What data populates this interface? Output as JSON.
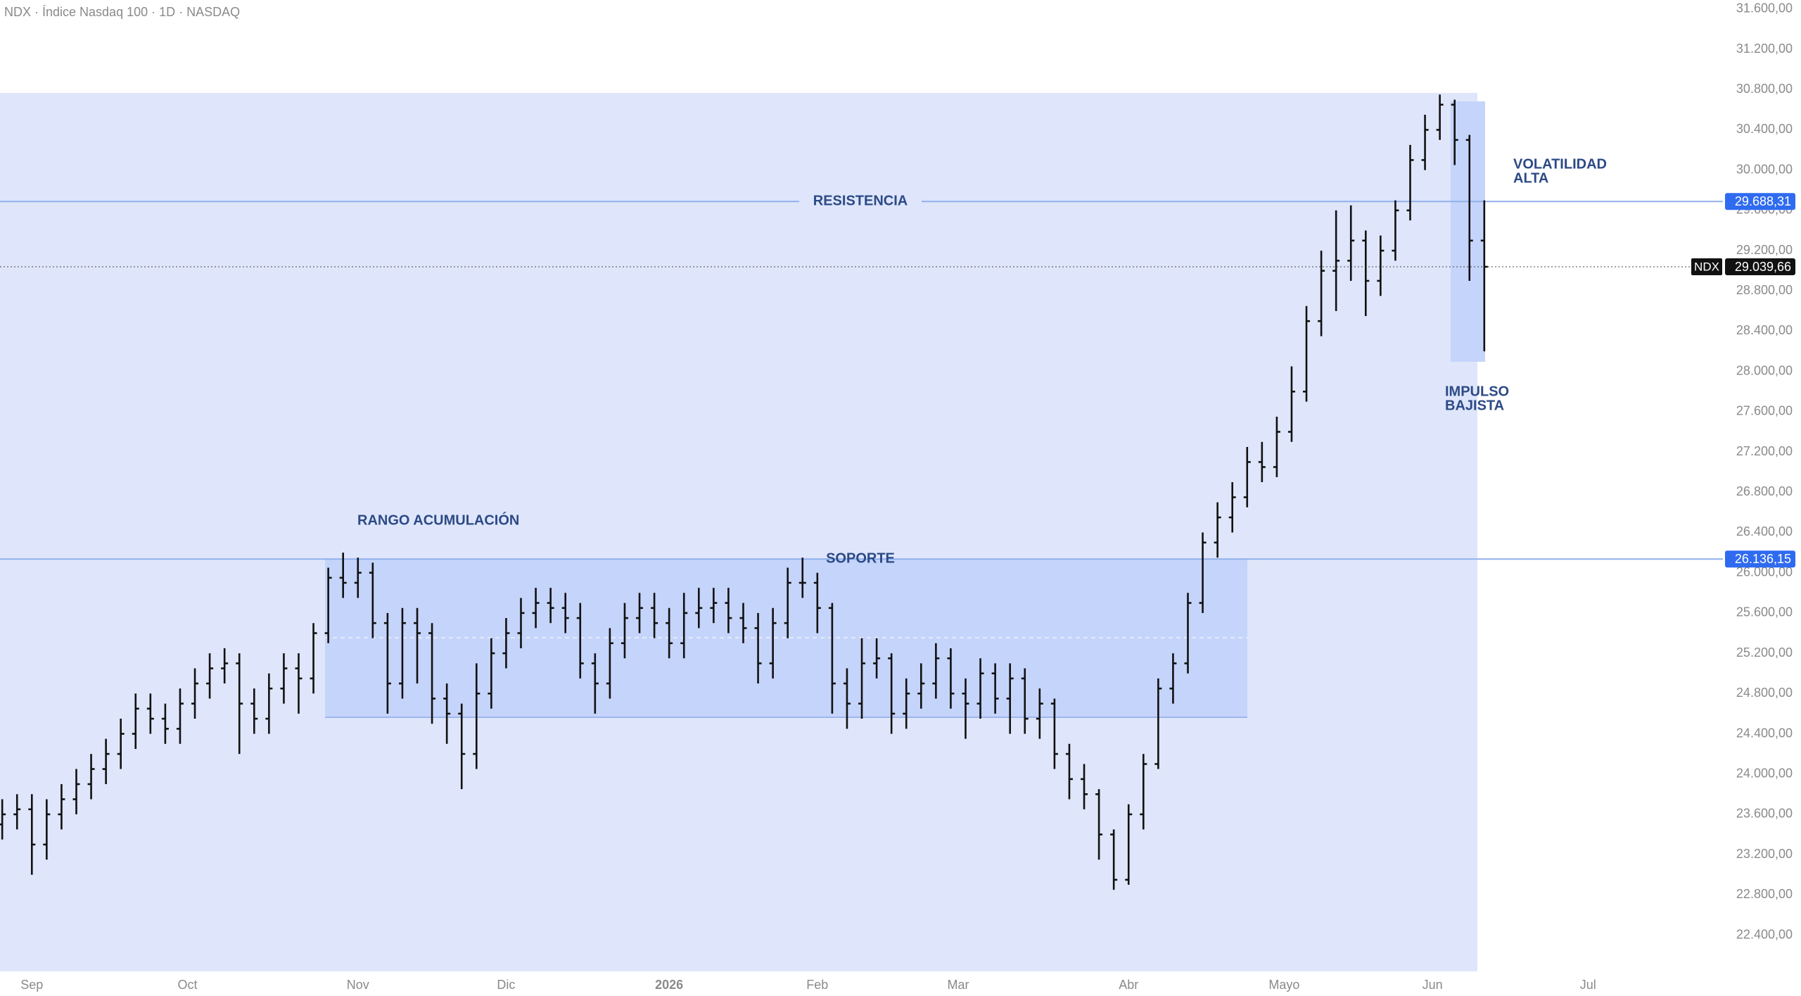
{
  "chart_data": {
    "type": "ohlc",
    "title": "NDX · Índice Nasdaq 100 · 1D · NASDAQ",
    "color": "#111111",
    "open": [
      23500,
      23600,
      23650,
      23300,
      23600,
      23750,
      23900,
      24050,
      24200,
      24400,
      24650,
      24550,
      24450,
      24700,
      24900,
      25050,
      25100,
      24700,
      24550,
      24850,
      25050,
      24950,
      25400,
      25950,
      25900,
      26000,
      25500,
      24900,
      25500,
      25400,
      24750,
      24600,
      24200,
      24800,
      25200,
      25400,
      25600,
      25700,
      25650,
      25550,
      25100,
      24900,
      25300,
      25550,
      25650,
      25500,
      25300,
      25600,
      25650,
      25700,
      25550,
      25450,
      25100,
      25500,
      25900,
      25900,
      25650,
      24900,
      24700,
      25100,
      25150,
      24600,
      24800,
      24900,
      25150,
      24800,
      24700,
      25000,
      24750,
      24950,
      24550,
      24700,
      24200,
      23950,
      23800,
      23400,
      22950,
      23600,
      24100,
      24850,
      25100,
      25700,
      26300,
      26550,
      26750,
      27100,
      27050,
      27400,
      27800,
      28500,
      29000,
      29100,
      29300,
      28900,
      29200,
      29600,
      30100,
      30400,
      30650,
      30300,
      29300
    ],
    "high": [
      23750,
      23800,
      23800,
      23750,
      23900,
      24050,
      24200,
      24350,
      24550,
      24800,
      24800,
      24700,
      24850,
      25050,
      25200,
      25250,
      25200,
      24850,
      25000,
      25200,
      25200,
      25500,
      26050,
      26200,
      26150,
      26100,
      25600,
      25650,
      25650,
      25500,
      24900,
      24700,
      25100,
      25350,
      25550,
      25750,
      25850,
      25850,
      25800,
      25700,
      25200,
      25450,
      25700,
      25800,
      25800,
      25650,
      25800,
      25850,
      25850,
      25850,
      25700,
      25600,
      25650,
      26050,
      26150,
      26000,
      25700,
      25050,
      25350,
      25350,
      25200,
      24950,
      25100,
      25300,
      25250,
      24950,
      25150,
      25100,
      25100,
      25050,
      24850,
      24750,
      24300,
      24100,
      23850,
      23450,
      23700,
      24200,
      24950,
      25200,
      25800,
      26400,
      26700,
      26900,
      27250,
      27300,
      27550,
      28050,
      28650,
      29200,
      29600,
      29650,
      29400,
      29350,
      29700,
      30250,
      30550,
      30750,
      30700,
      30350,
      29700
    ],
    "low": [
      23350,
      23450,
      23000,
      23150,
      23450,
      23600,
      23750,
      23900,
      24050,
      24250,
      24400,
      24300,
      24300,
      24550,
      24750,
      24900,
      24200,
      24400,
      24400,
      24700,
      24600,
      24800,
      25300,
      25750,
      25750,
      25350,
      24600,
      24750,
      24900,
      24500,
      24300,
      23850,
      24050,
      24650,
      25050,
      25250,
      25450,
      25500,
      25400,
      24950,
      24600,
      24750,
      25150,
      25400,
      25350,
      25150,
      25150,
      25450,
      25500,
      25400,
      25300,
      24900,
      24950,
      25350,
      25750,
      25400,
      24600,
      24450,
      24550,
      24950,
      24400,
      24450,
      24650,
      24750,
      24650,
      24350,
      24550,
      24600,
      24400,
      24400,
      24350,
      24050,
      23750,
      23650,
      23150,
      22850,
      22900,
      23450,
      24050,
      24700,
      25000,
      25600,
      26150,
      26400,
      26650,
      26900,
      26950,
      27300,
      27700,
      28350,
      28600,
      28900,
      28550,
      28750,
      29100,
      29500,
      30000,
      30300,
      30050,
      28900,
      28200
    ],
    "close": [
      23600,
      23650,
      23300,
      23600,
      23750,
      23900,
      24050,
      24200,
      24400,
      24650,
      24550,
      24450,
      24700,
      24900,
      25050,
      25100,
      24700,
      24550,
      24850,
      25050,
      24950,
      25400,
      25950,
      25900,
      26000,
      25500,
      24900,
      25500,
      25400,
      24750,
      24600,
      24200,
      24800,
      25200,
      25400,
      25600,
      25700,
      25650,
      25550,
      25100,
      24900,
      25300,
      25550,
      25650,
      25500,
      25300,
      25600,
      25650,
      25700,
      25550,
      25450,
      25100,
      25500,
      25900,
      25900,
      25650,
      24900,
      24700,
      25100,
      25150,
      24600,
      24800,
      24900,
      25150,
      24800,
      24700,
      25000,
      24750,
      24950,
      24550,
      24700,
      24200,
      23950,
      23800,
      23400,
      22950,
      23600,
      24100,
      24850,
      25100,
      25700,
      26300,
      26550,
      26750,
      27100,
      27050,
      27400,
      27800,
      28500,
      29000,
      29100,
      29300,
      28900,
      29200,
      29600,
      30100,
      30400,
      30650,
      30300,
      29300,
      29039.66
    ],
    "last_price": {
      "symbol": "NDX",
      "label": "29.039,66"
    },
    "levels": [
      {
        "name": "RESISTENCIA",
        "value": 29688.31,
        "label": "29.688,31"
      },
      {
        "name": "SOPORTE",
        "value": 26136.15,
        "label": "26.136,15"
      }
    ],
    "annotations": [
      [
        "RANGO ACUMULACIÓN"
      ],
      [
        "VOLATILIDAD",
        "ALTA"
      ],
      [
        "IMPULSO",
        "BAJISTA"
      ]
    ],
    "xlim": [
      -0.15,
      116.1
    ],
    "xticks": [
      {
        "value": 2,
        "label": "Sep"
      },
      {
        "value": 12.5,
        "label": "Oct"
      },
      {
        "value": 24,
        "label": "Nov"
      },
      {
        "value": 34,
        "label": "Dic"
      },
      {
        "value": 45,
        "label": "2026"
      },
      {
        "value": 55,
        "label": "Feb"
      },
      {
        "value": 64.5,
        "label": "Mar"
      },
      {
        "value": 76,
        "label": "Abr"
      },
      {
        "value": 86.5,
        "label": "Mayo"
      },
      {
        "value": 96.5,
        "label": "Jun"
      },
      {
        "value": 107,
        "label": "Jul"
      }
    ],
    "ylim": [
      22040,
      31690
    ],
    "yticks": [
      {
        "value": 22400,
        "label": "22.400,00"
      },
      {
        "value": 22800,
        "label": "22.800,00"
      },
      {
        "value": 23200,
        "label": "23.200,00"
      },
      {
        "value": 23600,
        "label": "23.600,00"
      },
      {
        "value": 24000,
        "label": "24.000,00"
      },
      {
        "value": 24400,
        "label": "24.400,00"
      },
      {
        "value": 24800,
        "label": "24.800,00"
      },
      {
        "value": 25200,
        "label": "25.200,00"
      },
      {
        "value": 25600,
        "label": "25.600,00"
      },
      {
        "value": 26000,
        "label": "26.000,00"
      },
      {
        "value": 26400,
        "label": "26.400,00"
      },
      {
        "value": 26800,
        "label": "26.800,00"
      },
      {
        "value": 27200,
        "label": "27.200,00"
      },
      {
        "value": 27600,
        "label": "27.600,00"
      },
      {
        "value": 28000,
        "label": "28.000,00"
      },
      {
        "value": 28400,
        "label": "28.400,00"
      },
      {
        "value": 28800,
        "label": "28.800,00"
      },
      {
        "value": 29200,
        "label": "29.200,00"
      },
      {
        "value": 29600,
        "label": "29.600,00"
      },
      {
        "value": 30000,
        "label": "30.000,00"
      },
      {
        "value": 30400,
        "label": "30.400,00"
      },
      {
        "value": 30800,
        "label": "30.800,00"
      },
      {
        "value": 31200,
        "label": "31.200,00"
      },
      {
        "value": 31600,
        "label": "31.600,00"
      }
    ]
  }
}
